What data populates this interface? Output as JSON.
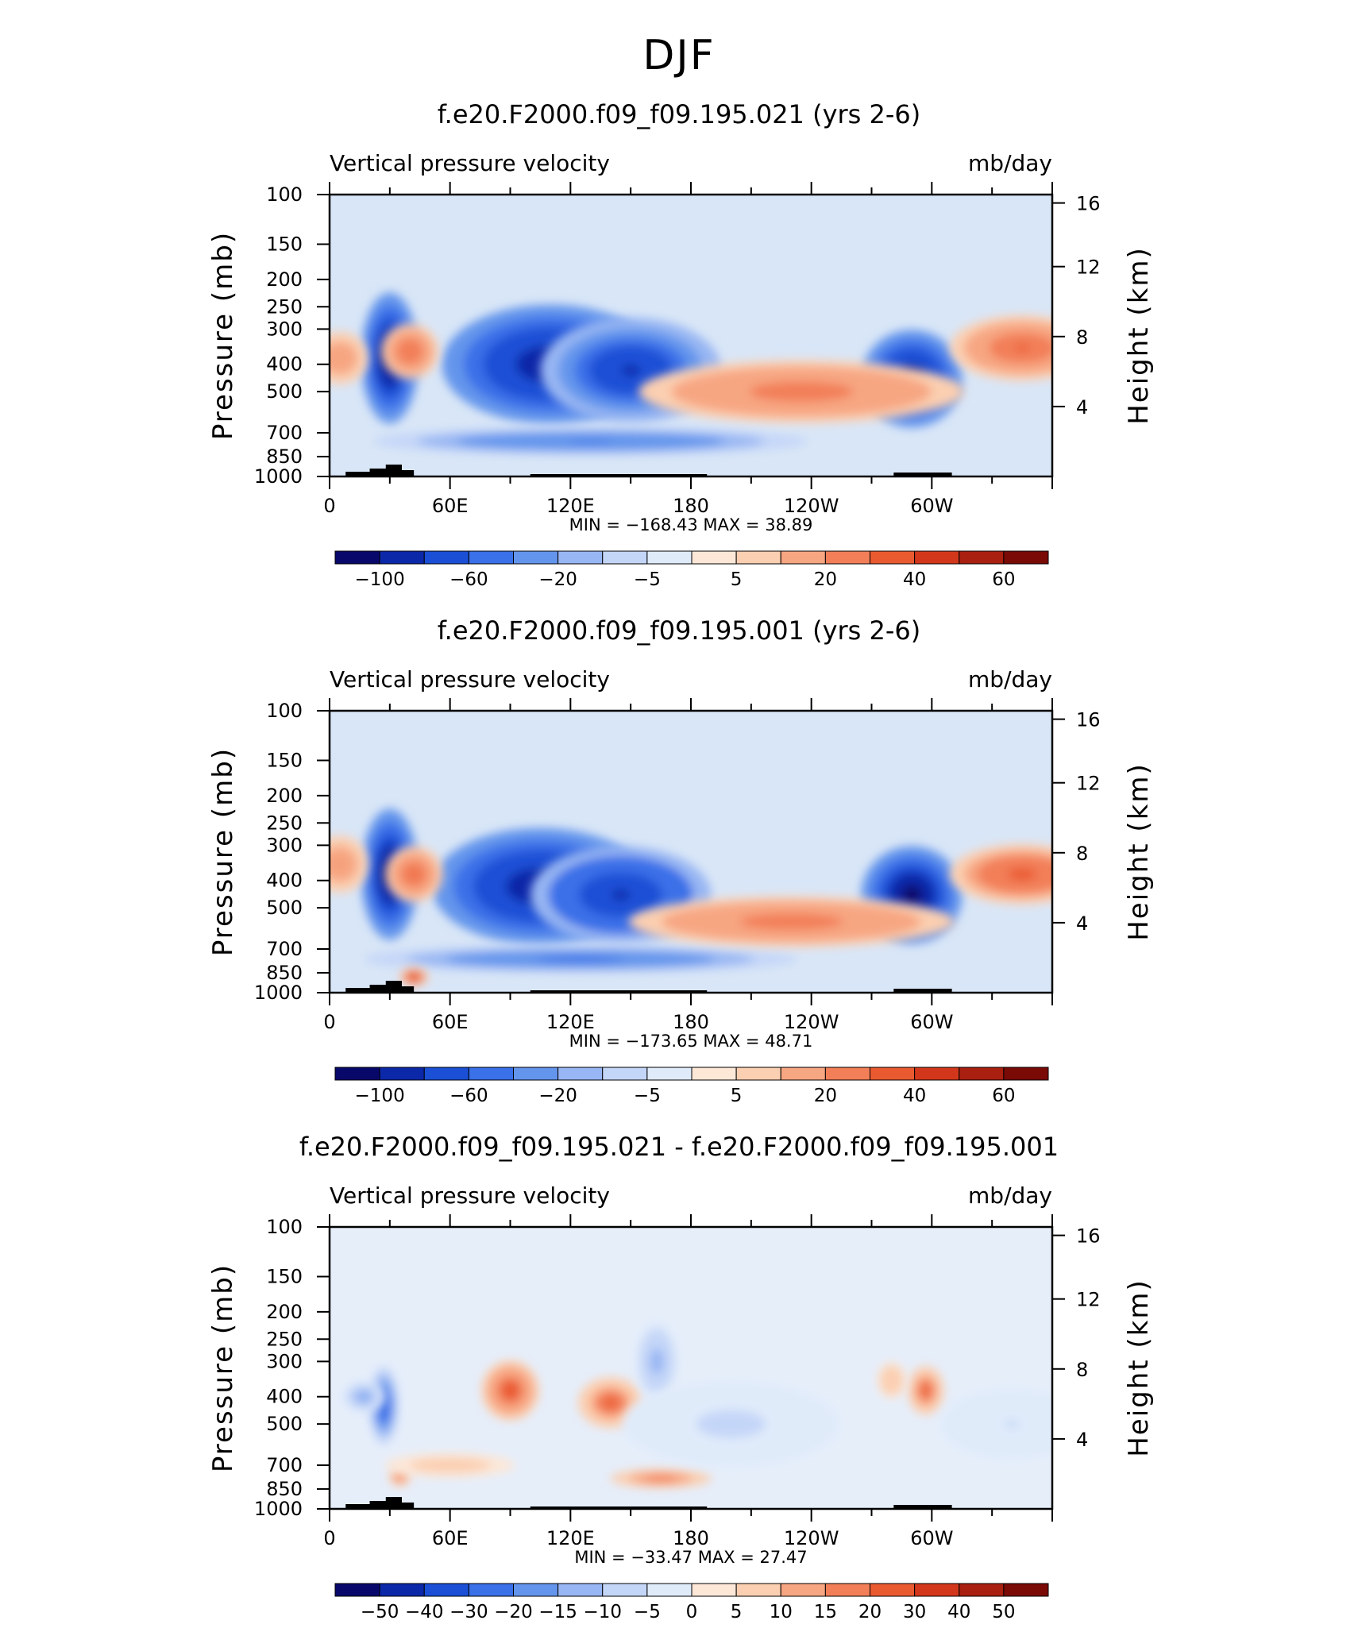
{
  "page_title": "DJF",
  "colors": {
    "neg": [
      "#08086b",
      "#0b28a8",
      "#1a4fd6",
      "#3a70e8",
      "#6495ec",
      "#97b6f3",
      "#c4d6f8",
      "#e0ebfa"
    ],
    "pos": [
      "#fde7d7",
      "#fbcfb1",
      "#f7a682",
      "#f27f58",
      "#ea5a30",
      "#d3371b",
      "#a91f10",
      "#7a0a05"
    ],
    "neutral": "#d9e6f7"
  },
  "chart_data": [
    {
      "type": "heatmap",
      "title": "f.e20.F2000.f09_f09.195.021 (yrs 2-6)",
      "left_label": "Vertical pressure velocity",
      "right_label": "mb/day",
      "ylabel": "Pressure (mb)",
      "ylabel2": "Height (km)",
      "x_ticks": [
        "0",
        "60E",
        "120E",
        "180",
        "120W",
        "60W"
      ],
      "y_ticks": [
        "100",
        "150",
        "200",
        "250",
        "300",
        "400",
        "500",
        "700",
        "850",
        "1000"
      ],
      "y2_ticks": [
        "16",
        "12",
        "8",
        "4"
      ],
      "min_max": "MIN = −168.43   MAX =   38.89",
      "colorbar_labels": [
        "−100",
        "−60",
        "−20",
        "−5",
        "5",
        "20",
        "40",
        "60"
      ],
      "xlim": [
        0,
        360
      ],
      "ylim": [
        1000,
        100
      ],
      "blobs": [
        {
          "lon": 30,
          "p": 380,
          "dx": 8,
          "dp": 330,
          "v": -150
        },
        {
          "lon": 110,
          "p": 400,
          "dx": 30,
          "dp": 320,
          "v": -110
        },
        {
          "lon": 150,
          "p": 420,
          "dx": 25,
          "dp": 300,
          "v": -90
        },
        {
          "lon": 130,
          "p": 750,
          "dx": 60,
          "dp": 150,
          "v": -35
        },
        {
          "lon": 290,
          "p": 450,
          "dx": 14,
          "dp": 300,
          "v": -130
        },
        {
          "lon": 40,
          "p": 360,
          "dx": 8,
          "dp": 140,
          "v": 26
        },
        {
          "lon": 235,
          "p": 500,
          "dx": 45,
          "dp": 220,
          "v": 22
        },
        {
          "lon": 345,
          "p": 350,
          "dx": 20,
          "dp": 160,
          "v": 30
        },
        {
          "lon": 5,
          "p": 380,
          "dx": 8,
          "dp": 140,
          "v": 15
        }
      ]
    },
    {
      "type": "heatmap",
      "title": "f.e20.F2000.f09_f09.195.001 (yrs 2-6)",
      "left_label": "Vertical pressure velocity",
      "right_label": "mb/day",
      "ylabel": "Pressure (mb)",
      "ylabel2": "Height (km)",
      "x_ticks": [
        "0",
        "60E",
        "120E",
        "180",
        "120W",
        "60W"
      ],
      "y_ticks": [
        "100",
        "150",
        "200",
        "250",
        "300",
        "400",
        "500",
        "700",
        "850",
        "1000"
      ],
      "y2_ticks": [
        "16",
        "12",
        "8",
        "4"
      ],
      "min_max": "MIN = −173.65   MAX =   48.71",
      "colorbar_labels": [
        "−100",
        "−60",
        "−20",
        "−5",
        "5",
        "20",
        "40",
        "60"
      ],
      "xlim": [
        0,
        360
      ],
      "ylim": [
        1000,
        100
      ],
      "blobs": [
        {
          "lon": 30,
          "p": 380,
          "dx": 8,
          "dp": 330,
          "v": -150
        },
        {
          "lon": 105,
          "p": 420,
          "dx": 30,
          "dp": 330,
          "v": -120
        },
        {
          "lon": 145,
          "p": 450,
          "dx": 25,
          "dp": 300,
          "v": -95
        },
        {
          "lon": 125,
          "p": 760,
          "dx": 60,
          "dp": 150,
          "v": -40
        },
        {
          "lon": 290,
          "p": 450,
          "dx": 14,
          "dp": 300,
          "v": -135
        },
        {
          "lon": 42,
          "p": 380,
          "dx": 8,
          "dp": 150,
          "v": 30
        },
        {
          "lon": 42,
          "p": 880,
          "dx": 4,
          "dp": 80,
          "v": 45
        },
        {
          "lon": 230,
          "p": 560,
          "dx": 45,
          "dp": 200,
          "v": 24
        },
        {
          "lon": 345,
          "p": 380,
          "dx": 20,
          "dp": 160,
          "v": 33
        },
        {
          "lon": 5,
          "p": 350,
          "dx": 8,
          "dp": 140,
          "v": 18
        }
      ]
    },
    {
      "type": "heatmap",
      "title": "f.e20.F2000.f09_f09.195.021 - f.e20.F2000.f09_f09.195.001",
      "left_label": "Vertical pressure velocity",
      "right_label": "mb/day",
      "ylabel": "Pressure (mb)",
      "ylabel2": "Height (km)",
      "x_ticks": [
        "0",
        "60E",
        "120E",
        "180",
        "120W",
        "60W"
      ],
      "y_ticks": [
        "100",
        "150",
        "200",
        "250",
        "300",
        "400",
        "500",
        "700",
        "850",
        "1000"
      ],
      "y2_ticks": [
        "16",
        "12",
        "8",
        "4"
      ],
      "min_max": "MIN = −33.47   MAX =   27.47",
      "colorbar_labels": [
        "−50",
        "−40",
        "−30",
        "−20",
        "−15",
        "−10",
        "−5",
        "0",
        "5",
        "10",
        "15",
        "20",
        "30",
        "40",
        "50"
      ],
      "xlim": [
        0,
        360
      ],
      "ylim": [
        1000,
        100
      ],
      "blobs": [
        {
          "lon": 27,
          "p": 430,
          "dx": 4,
          "dp": 230,
          "v": -30
        },
        {
          "lon": 17,
          "p": 400,
          "dx": 6,
          "dp": 90,
          "v": -15
        },
        {
          "lon": 35,
          "p": 770,
          "dx": 3,
          "dp": 70,
          "v": 20
        },
        {
          "lon": 90,
          "p": 380,
          "dx": 8,
          "dp": 160,
          "v": 25
        },
        {
          "lon": 140,
          "p": 420,
          "dx": 9,
          "dp": 150,
          "v": 22
        },
        {
          "lon": 165,
          "p": 780,
          "dx": 14,
          "dp": 100,
          "v": 18
        },
        {
          "lon": 163,
          "p": 300,
          "dx": 6,
          "dp": 170,
          "v": -12
        },
        {
          "lon": 297,
          "p": 380,
          "dx": 5,
          "dp": 130,
          "v": 22
        },
        {
          "lon": 280,
          "p": 350,
          "dx": 4,
          "dp": 90,
          "v": 8
        },
        {
          "lon": 200,
          "p": 500,
          "dx": 30,
          "dp": 300,
          "v": -4
        },
        {
          "lon": 60,
          "p": 700,
          "dx": 18,
          "dp": 120,
          "v": 6
        },
        {
          "lon": 340,
          "p": 500,
          "dx": 20,
          "dp": 250,
          "v": -3
        }
      ]
    }
  ]
}
